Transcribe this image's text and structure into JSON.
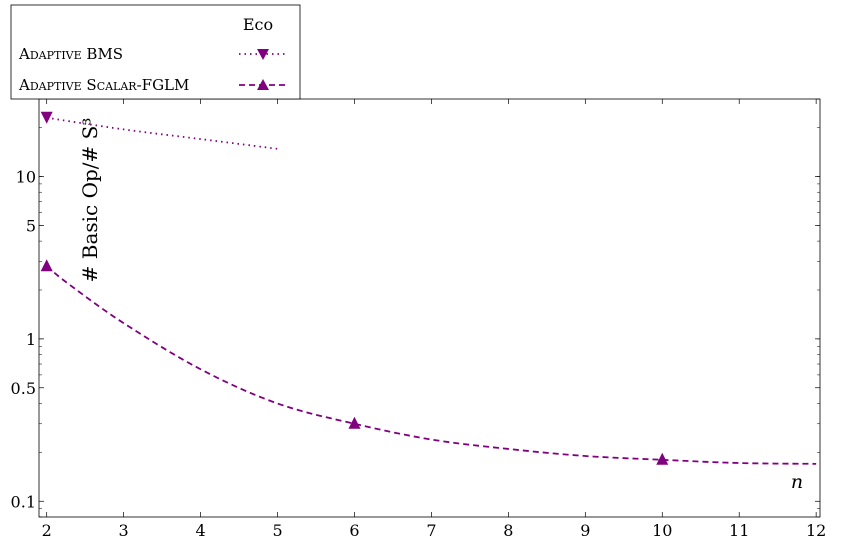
{
  "chart_data": {
    "type": "line",
    "title": "Eco",
    "xlabel": "n",
    "ylabel": "# Basic Op/# S³",
    "x_scale": "linear",
    "y_scale": "log",
    "xlim": [
      1.9,
      12.05
    ],
    "ylim": [
      0.08,
      30
    ],
    "xticks": [
      2,
      3,
      4,
      5,
      6,
      7,
      8,
      9,
      10,
      11,
      12
    ],
    "yticks": [
      {
        "value": 0.1,
        "label": "0.1"
      },
      {
        "value": 0.5,
        "label": "0.5"
      },
      {
        "value": 1,
        "label": "1"
      },
      {
        "value": 5,
        "label": "5"
      },
      {
        "value": 10,
        "label": "10"
      }
    ],
    "grid": false,
    "legend_position": "top-left",
    "series": [
      {
        "name": "Adaptive BMS",
        "color": "#800080",
        "line_style": "dotted",
        "marker": "triangle-down",
        "marker_x": [
          2
        ],
        "x": [
          2,
          3,
          4,
          5
        ],
        "y": [
          23,
          19.5,
          17,
          14.8
        ]
      },
      {
        "name": "Adaptive Scalar-FGLM",
        "color": "#800080",
        "line_style": "dashed",
        "marker": "triangle-up",
        "marker_x": [
          2,
          6,
          10
        ],
        "x": [
          2,
          2.3,
          3,
          4,
          5,
          6,
          7,
          8,
          9,
          10,
          11,
          12
        ],
        "y": [
          2.8,
          2.15,
          1.25,
          0.65,
          0.4,
          0.3,
          0.24,
          0.21,
          0.19,
          0.18,
          0.172,
          0.17
        ]
      }
    ]
  }
}
